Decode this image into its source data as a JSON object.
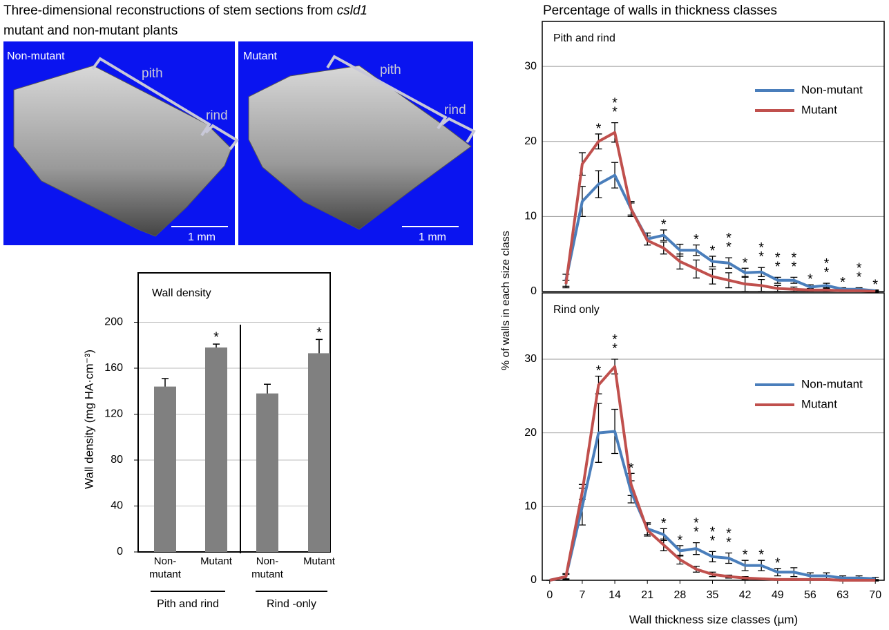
{
  "figure": {
    "title_line1": "Three-dimensional reconstructions of stem sections from ",
    "title_italic": "csld1",
    "title_line2": "mutant and non-mutant plants"
  },
  "images": [
    {
      "label": "Non-mutant",
      "pith": "pith",
      "rind": "rind",
      "scale": "1 mm"
    },
    {
      "label": "Mutant",
      "pith": "pith",
      "rind": "rind",
      "scale": "1 mm"
    }
  ],
  "chart_data": [
    {
      "type": "bar",
      "title": "Wall density",
      "ylabel": "Wall density (mg HA·cm⁻³)",
      "categories": [
        "Non-\nmutant",
        "Mutant",
        "Non-\nmutant",
        "Mutant"
      ],
      "values": [
        144,
        178,
        138,
        173
      ],
      "errors": [
        7,
        3,
        8,
        12
      ],
      "significance": [
        null,
        "*",
        null,
        "*"
      ],
      "group_labels": [
        "Pith and rind",
        "Rind -only"
      ],
      "color": "#808080",
      "ylim": [
        0,
        243
      ],
      "yticks": [
        0,
        40,
        80,
        120,
        160,
        200
      ],
      "grid": true
    },
    {
      "type": "line",
      "title": "Percentage of walls in thickness classes",
      "subtitle": "Pith and rind",
      "ylabel": "% of walls in each size class",
      "x": [
        3.5,
        7,
        10.5,
        14,
        17.5,
        21,
        24.5,
        28,
        31.5,
        35,
        38.5,
        42,
        45.5,
        49,
        52.5,
        56,
        59.5,
        63,
        66.5,
        70
      ],
      "series": [
        {
          "name": "Non-mutant",
          "color": "#4a7ebb",
          "values": [
            1.5,
            12,
            14.3,
            15.5,
            11,
            7,
            7.5,
            5.5,
            5.5,
            4,
            3.8,
            2.5,
            2.6,
            1.5,
            1.5,
            0.6,
            0.8,
            0.3,
            0.3,
            0.1
          ],
          "errors": [
            0.8,
            2,
            1.8,
            1.7,
            1,
            0.8,
            0.7,
            0.8,
            0.7,
            0.7,
            0.7,
            0.6,
            0.6,
            0.4,
            0.4,
            0.3,
            0.3,
            0.2,
            0.2,
            0.1
          ]
        },
        {
          "name": "Mutant",
          "color": "#c0504d",
          "values": [
            1,
            17,
            20,
            21.2,
            11,
            6.8,
            5.8,
            4,
            3,
            2,
            1.5,
            1,
            0.8,
            0.4,
            0.3,
            0.2,
            0.2,
            0.1,
            0.1,
            0
          ],
          "errors": [
            0.5,
            1.5,
            1,
            1.3,
            0.8,
            0.6,
            0.8,
            1,
            1.2,
            1,
            1,
            1,
            0.8,
            0.4,
            0.3,
            0.2,
            0.2,
            0.1,
            0.1,
            0.1
          ]
        }
      ],
      "significance": [
        null,
        null,
        "*",
        "**",
        null,
        null,
        "*",
        null,
        "*",
        "*",
        "**",
        "*",
        "**",
        "**",
        "**",
        "*",
        "**",
        "*",
        "**",
        "*"
      ],
      "legend": "upper right",
      "grid": true,
      "xlim": [
        -1.6,
        71.9
      ],
      "ylim": [
        0,
        36
      ],
      "yticks": [
        0,
        10,
        20,
        30
      ]
    },
    {
      "type": "line",
      "subtitle": "Rind only",
      "xlabel": "Wall thickness size classes (µm)",
      "x": [
        0,
        3.5,
        7,
        10.5,
        14,
        17.5,
        21,
        24.5,
        28,
        31.5,
        35,
        38.5,
        42,
        45.5,
        49,
        52.5,
        56,
        59.5,
        63,
        66.5,
        70
      ],
      "series": [
        {
          "name": "Non-mutant",
          "color": "#4a7ebb",
          "values": [
            0,
            0.5,
            10,
            20,
            20.2,
            12,
            7,
            6.2,
            4,
            4.3,
            3.2,
            3,
            2,
            2,
            1.1,
            1.1,
            0.6,
            0.6,
            0.3,
            0.3,
            0.2
          ],
          "errors": [
            0,
            0.4,
            2.5,
            4,
            3,
            1.5,
            0.8,
            0.8,
            0.7,
            0.8,
            0.7,
            0.7,
            0.7,
            0.7,
            0.5,
            0.6,
            0.4,
            0.4,
            0.3,
            0.3,
            0.2
          ]
        },
        {
          "name": "Mutant",
          "color": "#c0504d",
          "values": [
            0,
            0.5,
            12,
            26.5,
            29,
            13,
            6.8,
            4.8,
            2.8,
            1.5,
            0.8,
            0.5,
            0.3,
            0.2,
            0.1,
            0.1,
            0.1,
            0.1,
            0,
            0,
            0
          ],
          "errors": [
            0,
            0.3,
            1,
            1.2,
            1,
            1.5,
            0.8,
            0.8,
            0.6,
            0.4,
            0.3,
            0.2,
            0.2,
            0.1,
            0.1,
            0.1,
            0.1,
            0.1,
            0.1,
            0.1,
            0.1
          ]
        }
      ],
      "significance": [
        null,
        null,
        null,
        "*",
        "**",
        "*",
        null,
        "*",
        "*",
        "**",
        "**",
        "**",
        "*",
        "*",
        "*",
        null,
        null,
        null,
        null,
        null,
        null
      ],
      "legend": "upper right",
      "grid": true,
      "xlim": [
        -1.6,
        71.9
      ],
      "ylim": [
        0,
        39
      ],
      "xticks": [
        0,
        7,
        14,
        21,
        28,
        35,
        42,
        49,
        56,
        63,
        70
      ],
      "yticks": [
        0,
        10,
        20,
        30
      ]
    }
  ]
}
